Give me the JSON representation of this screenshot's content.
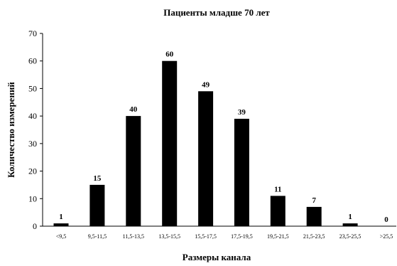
{
  "chart_data": {
    "type": "bar",
    "title": "Пациенты младше 70 лет",
    "xlabel": "Размеры канала",
    "ylabel": "Количество измерений",
    "categories": [
      "<9,5",
      "9,5-11,5",
      "11,5-13,5",
      "13,5-15,5",
      "15,5-17,5",
      "17,5-19,5",
      "19,5-21,5",
      "21,5-23,5",
      "23,5-25,5",
      ">25,5"
    ],
    "values": [
      1,
      15,
      40,
      60,
      49,
      39,
      11,
      7,
      1,
      0
    ],
    "data_labels": [
      "1",
      "15",
      "40",
      "60",
      "49",
      "39",
      "11",
      "7",
      "1",
      "0"
    ],
    "ylim": [
      0,
      70
    ],
    "yticks": [
      0,
      10,
      20,
      30,
      40,
      50,
      60,
      70
    ],
    "grid": false,
    "legend": "none",
    "bar_color": "#000000"
  }
}
